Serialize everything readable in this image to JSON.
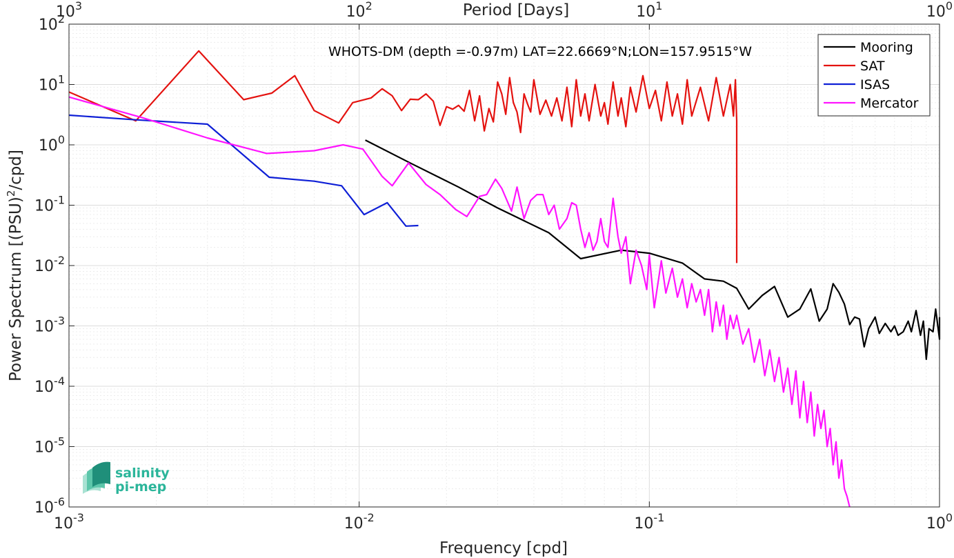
{
  "chart_data": {
    "type": "line",
    "title": "WHOTS-DM (depth =-0.97m) LAT=22.6669°N;LON=157.9515°W",
    "xlabel": "Frequency [cpd]",
    "ylabel": "Power Spectrum [(PSU)",
    "ylabel_sup": "2",
    "ylabel_tail": "/cpd]",
    "top_xlabel": "Period [Days]",
    "x_scale": "log",
    "y_scale": "log",
    "xlim": [
      0.001,
      1
    ],
    "ylim": [
      1e-06,
      100
    ],
    "grid": true,
    "legend_position": "top-right",
    "x_ticks": [
      {
        "value": 0.001,
        "base": "10",
        "exp": "-3"
      },
      {
        "value": 0.01,
        "base": "10",
        "exp": "-2"
      },
      {
        "value": 0.1,
        "base": "10",
        "exp": "-1"
      },
      {
        "value": 1,
        "base": "10",
        "exp": "0"
      }
    ],
    "top_ticks": [
      {
        "value": 0.001,
        "base": "10",
        "exp": "3"
      },
      {
        "value": 0.01,
        "base": "10",
        "exp": "2"
      },
      {
        "value": 0.1,
        "base": "10",
        "exp": "1"
      },
      {
        "value": 1,
        "base": "10",
        "exp": "0"
      }
    ],
    "y_ticks": [
      {
        "value": 100,
        "base": "10",
        "exp": "2"
      },
      {
        "value": 10,
        "base": "10",
        "exp": "1"
      },
      {
        "value": 1,
        "base": "10",
        "exp": "0"
      },
      {
        "value": 0.1,
        "base": "10",
        "exp": "-1"
      },
      {
        "value": 0.01,
        "base": "10",
        "exp": "-2"
      },
      {
        "value": 0.001,
        "base": "10",
        "exp": "-3"
      },
      {
        "value": 0.0001,
        "base": "10",
        "exp": "-4"
      },
      {
        "value": 1e-05,
        "base": "10",
        "exp": "-5"
      },
      {
        "value": 1e-06,
        "base": "10",
        "exp": "-6"
      }
    ],
    "series": [
      {
        "name": "Mooring",
        "color": "#000000",
        "points": [
          [
            0.0105,
            1.2
          ],
          [
            0.015,
            0.5
          ],
          [
            0.022,
            0.2
          ],
          [
            0.03,
            0.09
          ],
          [
            0.045,
            0.035
          ],
          [
            0.058,
            0.013
          ],
          [
            0.08,
            0.018
          ],
          [
            0.1,
            0.016
          ],
          [
            0.13,
            0.011
          ],
          [
            0.155,
            0.006
          ],
          [
            0.18,
            0.0055
          ],
          [
            0.2,
            0.0042
          ],
          [
            0.22,
            0.0019
          ],
          [
            0.245,
            0.0032
          ],
          [
            0.27,
            0.0045
          ],
          [
            0.3,
            0.0014
          ],
          [
            0.33,
            0.0019
          ],
          [
            0.36,
            0.0041
          ],
          [
            0.385,
            0.0012
          ],
          [
            0.41,
            0.0019
          ],
          [
            0.43,
            0.005
          ],
          [
            0.45,
            0.0036
          ],
          [
            0.47,
            0.0023
          ],
          [
            0.49,
            0.00105
          ],
          [
            0.51,
            0.0014
          ],
          [
            0.53,
            0.0013
          ],
          [
            0.55,
            0.00045
          ],
          [
            0.57,
            0.0009
          ],
          [
            0.6,
            0.0014
          ],
          [
            0.62,
            0.00075
          ],
          [
            0.65,
            0.0011
          ],
          [
            0.68,
            0.0008
          ],
          [
            0.7,
            0.001
          ],
          [
            0.72,
            0.0007
          ],
          [
            0.75,
            0.0008
          ],
          [
            0.78,
            0.0012
          ],
          [
            0.8,
            0.0008
          ],
          [
            0.83,
            0.0018
          ],
          [
            0.86,
            0.0007
          ],
          [
            0.88,
            0.0012
          ],
          [
            0.9,
            0.00028
          ],
          [
            0.92,
            0.0009
          ],
          [
            0.95,
            0.0008
          ],
          [
            0.97,
            0.0019
          ],
          [
            1.0,
            0.0006
          ],
          [
            1.0,
            0.0014
          ]
        ]
      },
      {
        "name": "SAT",
        "color": "#e4120f",
        "points": [
          [
            0.001,
            7.5
          ],
          [
            0.0017,
            2.5
          ],
          [
            0.0028,
            36
          ],
          [
            0.004,
            5.6
          ],
          [
            0.005,
            7.2
          ],
          [
            0.006,
            14
          ],
          [
            0.007,
            3.7
          ],
          [
            0.0085,
            2.3
          ],
          [
            0.0095,
            5
          ],
          [
            0.011,
            6
          ],
          [
            0.012,
            8.5
          ],
          [
            0.013,
            6.5
          ],
          [
            0.014,
            3.7
          ],
          [
            0.015,
            5.7
          ],
          [
            0.016,
            5.6
          ],
          [
            0.017,
            7
          ],
          [
            0.018,
            5.3
          ],
          [
            0.019,
            2.1
          ],
          [
            0.02,
            4.3
          ],
          [
            0.021,
            3.9
          ],
          [
            0.022,
            4.5
          ],
          [
            0.023,
            3.6
          ],
          [
            0.024,
            8
          ],
          [
            0.025,
            2.5
          ],
          [
            0.026,
            6.5
          ],
          [
            0.027,
            1.7
          ],
          [
            0.028,
            4
          ],
          [
            0.029,
            2.4
          ],
          [
            0.03,
            11
          ],
          [
            0.031,
            7
          ],
          [
            0.032,
            3.2
          ],
          [
            0.033,
            13
          ],
          [
            0.034,
            5
          ],
          [
            0.035,
            3.5
          ],
          [
            0.036,
            1.6
          ],
          [
            0.037,
            7
          ],
          [
            0.038,
            4.8
          ],
          [
            0.039,
            3.5
          ],
          [
            0.04,
            12
          ],
          [
            0.042,
            3.2
          ],
          [
            0.044,
            5.5
          ],
          [
            0.046,
            3
          ],
          [
            0.048,
            6
          ],
          [
            0.05,
            2.5
          ],
          [
            0.052,
            9
          ],
          [
            0.054,
            2
          ],
          [
            0.056,
            12
          ],
          [
            0.058,
            3
          ],
          [
            0.06,
            7
          ],
          [
            0.062,
            2.5
          ],
          [
            0.065,
            10
          ],
          [
            0.068,
            3
          ],
          [
            0.07,
            5
          ],
          [
            0.072,
            2.2
          ],
          [
            0.075,
            11
          ],
          [
            0.078,
            3
          ],
          [
            0.08,
            6
          ],
          [
            0.083,
            2
          ],
          [
            0.086,
            9
          ],
          [
            0.09,
            3.5
          ],
          [
            0.095,
            14
          ],
          [
            0.1,
            4
          ],
          [
            0.105,
            8
          ],
          [
            0.11,
            2.5
          ],
          [
            0.115,
            11
          ],
          [
            0.12,
            3
          ],
          [
            0.125,
            7
          ],
          [
            0.13,
            2.2
          ],
          [
            0.135,
            12
          ],
          [
            0.14,
            3
          ],
          [
            0.15,
            9
          ],
          [
            0.16,
            2.5
          ],
          [
            0.17,
            13
          ],
          [
            0.18,
            3
          ],
          [
            0.19,
            10
          ],
          [
            0.195,
            3
          ],
          [
            0.198,
            12
          ],
          [
            0.2,
            2.5
          ],
          [
            0.2,
            0.011
          ]
        ]
      },
      {
        "name": "ISAS",
        "color": "#0e1fd6",
        "points": [
          [
            0.001,
            3.1
          ],
          [
            0.0017,
            2.6
          ],
          [
            0.003,
            2.2
          ],
          [
            0.0049,
            0.29
          ],
          [
            0.007,
            0.25
          ],
          [
            0.0087,
            0.21
          ],
          [
            0.0104,
            0.07
          ],
          [
            0.0125,
            0.11
          ],
          [
            0.0145,
            0.045
          ],
          [
            0.016,
            0.046
          ]
        ]
      },
      {
        "name": "Mercator",
        "color": "#ff14ff",
        "points": [
          [
            0.001,
            6.2
          ],
          [
            0.0018,
            2.8
          ],
          [
            0.003,
            1.3
          ],
          [
            0.0048,
            0.72
          ],
          [
            0.007,
            0.8
          ],
          [
            0.0088,
            1.0
          ],
          [
            0.0103,
            0.85
          ],
          [
            0.012,
            0.3
          ],
          [
            0.013,
            0.21
          ],
          [
            0.0148,
            0.5
          ],
          [
            0.017,
            0.22
          ],
          [
            0.019,
            0.15
          ],
          [
            0.0215,
            0.085
          ],
          [
            0.0235,
            0.065
          ],
          [
            0.026,
            0.14
          ],
          [
            0.0275,
            0.15
          ],
          [
            0.0295,
            0.27
          ],
          [
            0.031,
            0.19
          ],
          [
            0.0335,
            0.08
          ],
          [
            0.035,
            0.2
          ],
          [
            0.037,
            0.06
          ],
          [
            0.039,
            0.12
          ],
          [
            0.041,
            0.15
          ],
          [
            0.043,
            0.15
          ],
          [
            0.045,
            0.07
          ],
          [
            0.047,
            0.1
          ],
          [
            0.049,
            0.04
          ],
          [
            0.052,
            0.06
          ],
          [
            0.054,
            0.11
          ],
          [
            0.056,
            0.1
          ],
          [
            0.058,
            0.04
          ],
          [
            0.06,
            0.02
          ],
          [
            0.062,
            0.035
          ],
          [
            0.064,
            0.018
          ],
          [
            0.066,
            0.025
          ],
          [
            0.068,
            0.06
          ],
          [
            0.07,
            0.025
          ],
          [
            0.072,
            0.02
          ],
          [
            0.075,
            0.13
          ],
          [
            0.078,
            0.03
          ],
          [
            0.08,
            0.016
          ],
          [
            0.083,
            0.03
          ],
          [
            0.086,
            0.005
          ],
          [
            0.09,
            0.018
          ],
          [
            0.094,
            0.01
          ],
          [
            0.098,
            0.004
          ],
          [
            0.1,
            0.015
          ],
          [
            0.104,
            0.002
          ],
          [
            0.11,
            0.012
          ],
          [
            0.114,
            0.0035
          ],
          [
            0.12,
            0.009
          ],
          [
            0.125,
            0.003
          ],
          [
            0.13,
            0.006
          ],
          [
            0.135,
            0.002
          ],
          [
            0.14,
            0.005
          ],
          [
            0.145,
            0.0025
          ],
          [
            0.15,
            0.004
          ],
          [
            0.155,
            0.0015
          ],
          [
            0.16,
            0.004
          ],
          [
            0.165,
            0.0008
          ],
          [
            0.17,
            0.0025
          ],
          [
            0.175,
            0.001
          ],
          [
            0.18,
            0.0022
          ],
          [
            0.185,
            0.0006
          ],
          [
            0.19,
            0.0015
          ],
          [
            0.195,
            0.0009
          ],
          [
            0.2,
            0.0015
          ],
          [
            0.21,
            0.0005
          ],
          [
            0.22,
            0.0009
          ],
          [
            0.23,
            0.00025
          ],
          [
            0.24,
            0.0006
          ],
          [
            0.25,
            0.00015
          ],
          [
            0.26,
            0.0004
          ],
          [
            0.27,
            0.00012
          ],
          [
            0.28,
            0.0003
          ],
          [
            0.29,
            8e-05
          ],
          [
            0.3,
            0.0002
          ],
          [
            0.31,
            5e-05
          ],
          [
            0.32,
            0.00018
          ],
          [
            0.33,
            3e-05
          ],
          [
            0.34,
            0.00012
          ],
          [
            0.35,
            2.5e-05
          ],
          [
            0.36,
            8e-05
          ],
          [
            0.37,
            1.5e-05
          ],
          [
            0.38,
            5e-05
          ],
          [
            0.39,
            2e-05
          ],
          [
            0.4,
            4e-05
          ],
          [
            0.41,
            1e-05
          ],
          [
            0.42,
            2e-05
          ],
          [
            0.43,
            5e-06
          ],
          [
            0.44,
            1.2e-05
          ],
          [
            0.45,
            3e-06
          ],
          [
            0.46,
            6e-06
          ],
          [
            0.47,
            2e-06
          ],
          [
            0.48,
            1.5e-06
          ],
          [
            0.49,
            1e-06
          ]
        ]
      }
    ]
  },
  "logo": {
    "line1": "salinity",
    "line2": "pi-mep"
  }
}
